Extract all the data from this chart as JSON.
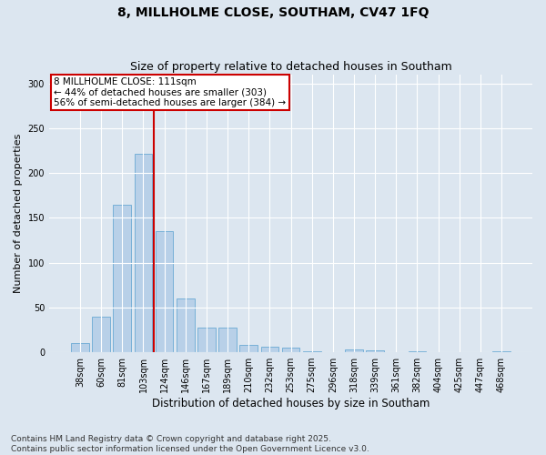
{
  "title_line1": "8, MILLHOLME CLOSE, SOUTHAM, CV47 1FQ",
  "title_line2": "Size of property relative to detached houses in Southam",
  "xlabel": "Distribution of detached houses by size in Southam",
  "ylabel": "Number of detached properties",
  "categories": [
    "38sqm",
    "60sqm",
    "81sqm",
    "103sqm",
    "124sqm",
    "146sqm",
    "167sqm",
    "189sqm",
    "210sqm",
    "232sqm",
    "253sqm",
    "275sqm",
    "296sqm",
    "318sqm",
    "339sqm",
    "361sqm",
    "382sqm",
    "404sqm",
    "425sqm",
    "447sqm",
    "468sqm"
  ],
  "values": [
    10,
    40,
    165,
    222,
    135,
    60,
    28,
    28,
    8,
    6,
    5,
    1,
    0,
    3,
    2,
    0,
    1,
    0,
    0,
    0,
    1
  ],
  "bar_color": "#b8d0e8",
  "bar_edge_color": "#6aaad4",
  "vline_x": 3.5,
  "vline_color": "#cc0000",
  "annotation_text": "8 MILLHOLME CLOSE: 111sqm\n← 44% of detached houses are smaller (303)\n56% of semi-detached houses are larger (384) →",
  "annotation_box_color": "#ffffff",
  "annotation_box_edge": "#cc0000",
  "ylim": [
    0,
    310
  ],
  "yticks": [
    0,
    50,
    100,
    150,
    200,
    250,
    300
  ],
  "background_color": "#dce6f0",
  "plot_bg_color": "#dce6f0",
  "footer_text": "Contains HM Land Registry data © Crown copyright and database right 2025.\nContains public sector information licensed under the Open Government Licence v3.0.",
  "title_fontsize": 10,
  "subtitle_fontsize": 9,
  "tick_fontsize": 7,
  "xlabel_fontsize": 8.5,
  "ylabel_fontsize": 8,
  "footer_fontsize": 6.5,
  "ann_fontsize": 7.5
}
